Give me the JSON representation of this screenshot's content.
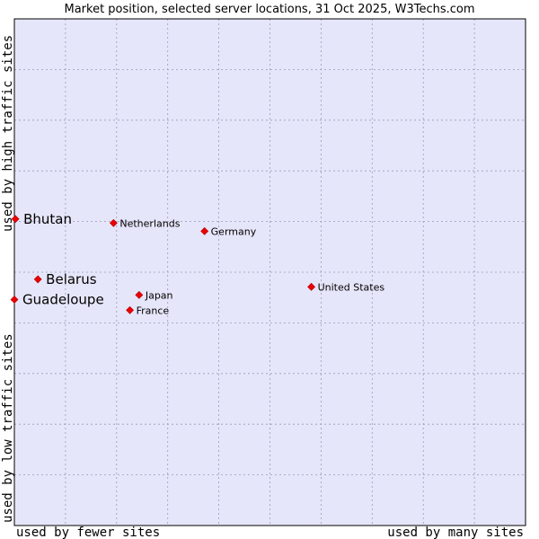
{
  "chart_data": {
    "type": "scatter",
    "title": "Market position, selected server locations, 31 Oct 2025, W3Techs.com",
    "xlabel_left": "used by fewer sites",
    "xlabel_right": "used by many sites",
    "ylabel_bottom": "used by low traffic sites",
    "ylabel_top": "used by high traffic sites",
    "xlim": [
      0,
      100
    ],
    "ylim": [
      0,
      100
    ],
    "grid": true,
    "colors": {
      "plot_bg": "#e6e6fa",
      "grid": "#9999bb",
      "point": "#ee0000",
      "frame": "#000000"
    },
    "points": [
      {
        "label": "Bhutan",
        "x": 0.2,
        "y": 60.5,
        "highlight": true
      },
      {
        "label": "Belarus",
        "x": 4.6,
        "y": 48.6,
        "highlight": true
      },
      {
        "label": "Guadeloupe",
        "x": 0.0,
        "y": 44.6,
        "highlight": true
      },
      {
        "label": "Netherlands",
        "x": 19.4,
        "y": 59.7,
        "highlight": false
      },
      {
        "label": "Germany",
        "x": 37.2,
        "y": 58.1,
        "highlight": false
      },
      {
        "label": "United States",
        "x": 58.1,
        "y": 47.1,
        "highlight": false
      },
      {
        "label": "Japan",
        "x": 24.4,
        "y": 45.5,
        "highlight": false
      },
      {
        "label": "France",
        "x": 22.6,
        "y": 42.5,
        "highlight": false
      }
    ]
  }
}
